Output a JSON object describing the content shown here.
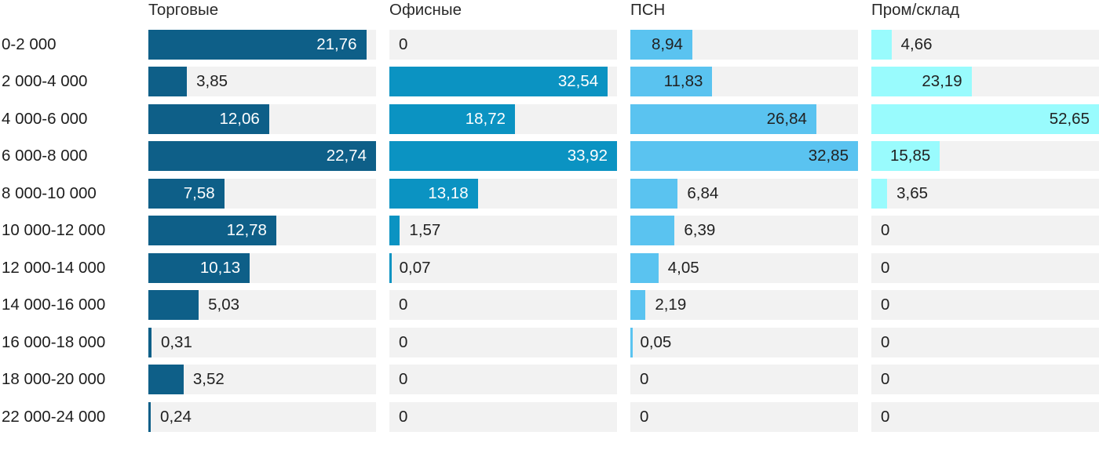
{
  "chart_data": {
    "type": "bar",
    "orientation": "horizontal",
    "note": "small multiples: 4 side-by-side horizontal bar columns, each scaled independently to its own max",
    "track_color": "#f2f2f2",
    "label_color": "#1d1d1d",
    "header_color": "#2a2a2a",
    "outside_value_color": "#212121",
    "categories": [
      "0-2 000",
      "2 000-4 000",
      "4 000-6 000",
      "6 000-8 000",
      "8 000-10 000",
      "10 000-12 000",
      "12 000-14 000",
      "14 000-16 000",
      "16 000-18 000",
      "18 000-20 000",
      "22 000-24 000"
    ],
    "series": [
      {
        "name": "Торговые",
        "color": "#0e5f88",
        "value_color_inside": "#ffffff",
        "values": [
          21.76,
          3.85,
          12.06,
          22.74,
          7.58,
          12.78,
          10.13,
          5.03,
          0.31,
          3.52,
          0.24
        ],
        "display": [
          "21,76",
          "3,85",
          "12,06",
          "22,74",
          "7,58",
          "12,78",
          "10,13",
          "5,03",
          "0,31",
          "3,52",
          "0,24"
        ]
      },
      {
        "name": "Офисные",
        "color": "#0b93c2",
        "value_color_inside": "#ffffff",
        "values": [
          0,
          32.54,
          18.72,
          33.92,
          13.18,
          1.57,
          0.07,
          0,
          0,
          0,
          0
        ],
        "display": [
          "0",
          "32,54",
          "18,72",
          "33,92",
          "13,18",
          "1,57",
          "0,07",
          "0",
          "0",
          "0",
          "0"
        ]
      },
      {
        "name": "ПСН",
        "color": "#5ac3f0",
        "value_color_inside": "#212121",
        "values": [
          8.94,
          11.83,
          26.84,
          32.85,
          6.84,
          6.39,
          4.05,
          2.19,
          0.05,
          0,
          0
        ],
        "display": [
          "8,94",
          "11,83",
          "26,84",
          "32,85",
          "6,84",
          "6,39",
          "4,05",
          "2,19",
          "0,05",
          "0",
          "0"
        ]
      },
      {
        "name": "Пром/склад",
        "color": "#99fbfd",
        "value_color_inside": "#212121",
        "values": [
          4.66,
          23.19,
          52.65,
          15.85,
          3.65,
          0,
          0,
          0,
          0,
          0,
          0
        ],
        "display": [
          "4,66",
          "23,19",
          "52,65",
          "15,85",
          "3,65",
          "0",
          "0",
          "0",
          "0",
          "0",
          "0"
        ]
      }
    ]
  }
}
